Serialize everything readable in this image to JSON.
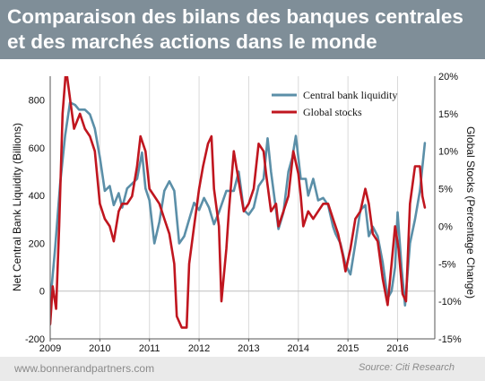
{
  "header": {
    "title": "Comparaison des bilans des banques centrales et des marchés actions dans le monde"
  },
  "footer": {
    "website": "www.bonnerandpartners.com",
    "source": "Source: Citi Research"
  },
  "colors": {
    "title_bar": "#7f8e98",
    "liquidity": "#5b8fa8",
    "stocks": "#c0161f",
    "footer": "#eaeaea"
  },
  "chart_data": {
    "type": "line",
    "xlabel": "",
    "ylabel": "Net Central Bank Liquidity (Billions)",
    "y2label": "Global Stocks (Percentage Change)",
    "xlim": [
      2009.0,
      2016.75
    ],
    "ylim": [
      -200,
      900
    ],
    "y2lim": [
      -15,
      20
    ],
    "x_ticks": [
      "2009",
      "2010",
      "2011",
      "2012",
      "2013",
      "2014",
      "2015",
      "2016"
    ],
    "y_ticks": [
      -200,
      0,
      200,
      400,
      600,
      800
    ],
    "y2_ticks": [
      "-15%",
      "-10%",
      "-5%",
      "0%",
      "5%",
      "10%",
      "15%",
      "20%"
    ],
    "legend_position": "top-right",
    "series": [
      {
        "name": "Central bank liquidity",
        "axis": "left",
        "points": [
          [
            2008.9,
            -180
          ],
          [
            2009.0,
            -50
          ],
          [
            2009.1,
            180
          ],
          [
            2009.2,
            450
          ],
          [
            2009.3,
            650
          ],
          [
            2009.4,
            790
          ],
          [
            2009.5,
            780
          ],
          [
            2009.58,
            760
          ],
          [
            2009.7,
            760
          ],
          [
            2009.8,
            740
          ],
          [
            2009.9,
            680
          ],
          [
            2010.0,
            560
          ],
          [
            2010.1,
            420
          ],
          [
            2010.2,
            440
          ],
          [
            2010.28,
            360
          ],
          [
            2010.38,
            410
          ],
          [
            2010.45,
            350
          ],
          [
            2010.55,
            430
          ],
          [
            2010.65,
            450
          ],
          [
            2010.75,
            470
          ],
          [
            2010.85,
            580
          ],
          [
            2010.92,
            430
          ],
          [
            2011.0,
            380
          ],
          [
            2011.1,
            200
          ],
          [
            2011.2,
            290
          ],
          [
            2011.3,
            420
          ],
          [
            2011.4,
            460
          ],
          [
            2011.5,
            420
          ],
          [
            2011.6,
            200
          ],
          [
            2011.7,
            230
          ],
          [
            2011.8,
            300
          ],
          [
            2011.9,
            370
          ],
          [
            2012.0,
            340
          ],
          [
            2012.1,
            390
          ],
          [
            2012.2,
            350
          ],
          [
            2012.3,
            280
          ],
          [
            2012.4,
            330
          ],
          [
            2012.55,
            420
          ],
          [
            2012.7,
            420
          ],
          [
            2012.8,
            500
          ],
          [
            2012.9,
            340
          ],
          [
            2013.0,
            320
          ],
          [
            2013.1,
            350
          ],
          [
            2013.2,
            440
          ],
          [
            2013.3,
            470
          ],
          [
            2013.38,
            640
          ],
          [
            2013.45,
            500
          ],
          [
            2013.55,
            340
          ],
          [
            2013.6,
            260
          ],
          [
            2013.7,
            330
          ],
          [
            2013.8,
            500
          ],
          [
            2013.88,
            560
          ],
          [
            2013.95,
            650
          ],
          [
            2014.05,
            470
          ],
          [
            2014.15,
            470
          ],
          [
            2014.2,
            400
          ],
          [
            2014.3,
            470
          ],
          [
            2014.4,
            380
          ],
          [
            2014.5,
            390
          ],
          [
            2014.6,
            360
          ],
          [
            2014.7,
            270
          ],
          [
            2014.75,
            240
          ],
          [
            2014.85,
            200
          ],
          [
            2014.95,
            110
          ],
          [
            2015.05,
            70
          ],
          [
            2015.15,
            200
          ],
          [
            2015.25,
            340
          ],
          [
            2015.35,
            360
          ],
          [
            2015.42,
            230
          ],
          [
            2015.5,
            270
          ],
          [
            2015.6,
            230
          ],
          [
            2015.7,
            120
          ],
          [
            2015.8,
            -30
          ],
          [
            2015.88,
            0
          ],
          [
            2015.95,
            100
          ],
          [
            2016.0,
            330
          ],
          [
            2016.08,
            100
          ],
          [
            2016.15,
            -60
          ],
          [
            2016.25,
            200
          ],
          [
            2016.35,
            300
          ],
          [
            2016.45,
            420
          ],
          [
            2016.55,
            620
          ]
        ]
      },
      {
        "name": "Global stocks",
        "axis": "right",
        "points": [
          [
            2008.9,
            -14.5
          ],
          [
            2009.0,
            -13
          ],
          [
            2009.05,
            -8
          ],
          [
            2009.12,
            -11
          ],
          [
            2009.18,
            0
          ],
          [
            2009.25,
            15
          ],
          [
            2009.32,
            21
          ],
          [
            2009.4,
            17
          ],
          [
            2009.48,
            13
          ],
          [
            2009.6,
            15
          ],
          [
            2009.7,
            13
          ],
          [
            2009.8,
            12
          ],
          [
            2009.9,
            10
          ],
          [
            2010.0,
            3
          ],
          [
            2010.1,
            1
          ],
          [
            2010.2,
            0
          ],
          [
            2010.28,
            -2
          ],
          [
            2010.38,
            2
          ],
          [
            2010.45,
            3
          ],
          [
            2010.55,
            3
          ],
          [
            2010.65,
            4
          ],
          [
            2010.75,
            8
          ],
          [
            2010.82,
            12
          ],
          [
            2010.92,
            10
          ],
          [
            2011.0,
            5
          ],
          [
            2011.1,
            4
          ],
          [
            2011.2,
            3
          ],
          [
            2011.3,
            1
          ],
          [
            2011.4,
            -1
          ],
          [
            2011.5,
            -5
          ],
          [
            2011.55,
            -12
          ],
          [
            2011.65,
            -13.5
          ],
          [
            2011.75,
            -13.5
          ],
          [
            2011.8,
            -5
          ],
          [
            2011.9,
            0
          ],
          [
            2012.0,
            5
          ],
          [
            2012.08,
            8
          ],
          [
            2012.18,
            11
          ],
          [
            2012.25,
            12
          ],
          [
            2012.3,
            5
          ],
          [
            2012.4,
            0
          ],
          [
            2012.45,
            -10
          ],
          [
            2012.55,
            -3
          ],
          [
            2012.6,
            2
          ],
          [
            2012.7,
            10
          ],
          [
            2012.8,
            6
          ],
          [
            2012.9,
            2
          ],
          [
            2013.0,
            3
          ],
          [
            2013.1,
            5
          ],
          [
            2013.2,
            11
          ],
          [
            2013.3,
            10
          ],
          [
            2013.35,
            7
          ],
          [
            2013.45,
            2
          ],
          [
            2013.55,
            3
          ],
          [
            2013.6,
            0
          ],
          [
            2013.7,
            2
          ],
          [
            2013.8,
            4
          ],
          [
            2013.9,
            10
          ],
          [
            2014.0,
            7
          ],
          [
            2014.05,
            4
          ],
          [
            2014.1,
            0
          ],
          [
            2014.2,
            2
          ],
          [
            2014.3,
            1
          ],
          [
            2014.4,
            2
          ],
          [
            2014.5,
            3
          ],
          [
            2014.6,
            3
          ],
          [
            2014.7,
            1
          ],
          [
            2014.8,
            -1
          ],
          [
            2014.9,
            -4
          ],
          [
            2014.95,
            -6
          ],
          [
            2015.05,
            -3
          ],
          [
            2015.15,
            1
          ],
          [
            2015.25,
            2
          ],
          [
            2015.35,
            5
          ],
          [
            2015.42,
            3
          ],
          [
            2015.5,
            -1
          ],
          [
            2015.6,
            -2
          ],
          [
            2015.7,
            -7
          ],
          [
            2015.8,
            -10.5
          ],
          [
            2015.88,
            -5
          ],
          [
            2015.95,
            0
          ],
          [
            2016.02,
            -3
          ],
          [
            2016.1,
            -9
          ],
          [
            2016.17,
            -10
          ],
          [
            2016.25,
            3
          ],
          [
            2016.35,
            8
          ],
          [
            2016.45,
            8
          ],
          [
            2016.5,
            4
          ],
          [
            2016.55,
            2.5
          ]
        ]
      }
    ]
  }
}
